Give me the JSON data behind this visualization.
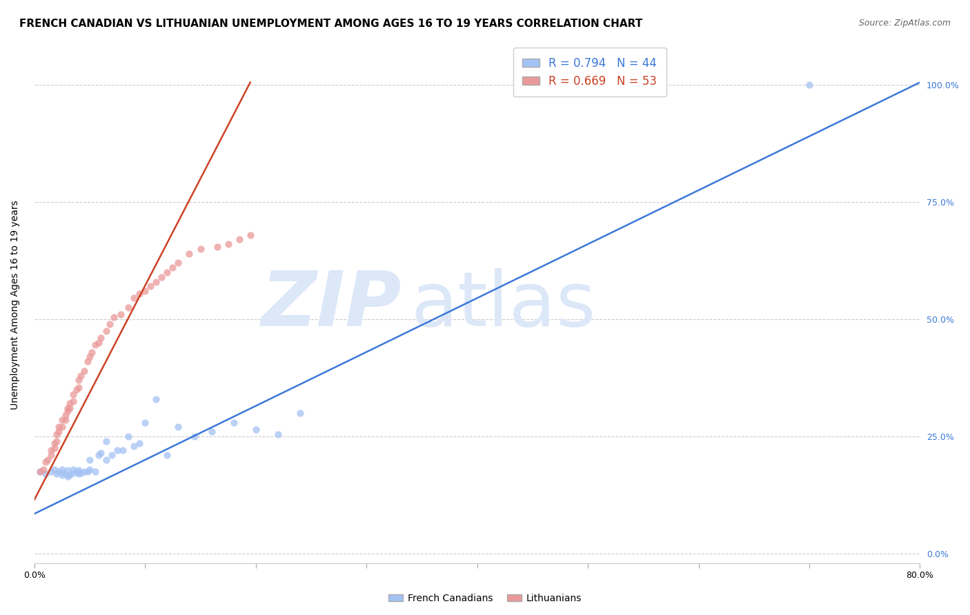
{
  "title": "FRENCH CANADIAN VS LITHUANIAN UNEMPLOYMENT AMONG AGES 16 TO 19 YEARS CORRELATION CHART",
  "source": "Source: ZipAtlas.com",
  "ylabel": "Unemployment Among Ages 16 to 19 years",
  "xlim": [
    0.0,
    0.8
  ],
  "ylim": [
    -0.02,
    1.08
  ],
  "blue_R": 0.794,
  "blue_N": 44,
  "pink_R": 0.669,
  "pink_N": 53,
  "blue_color": "#a4c2f4",
  "pink_color": "#ea9999",
  "blue_line_color": "#3c78d8",
  "pink_line_color": "#cc4125",
  "watermark_zip": "ZIP",
  "watermark_atlas": "atlas",
  "watermark_color": "#dce8f8",
  "legend_label_blue": "French Canadians",
  "legend_label_pink": "Lithuanians",
  "blue_scatter_x": [
    0.005,
    0.01,
    0.015,
    0.018,
    0.02,
    0.022,
    0.025,
    0.025,
    0.027,
    0.03,
    0.03,
    0.032,
    0.035,
    0.035,
    0.038,
    0.04,
    0.04,
    0.042,
    0.045,
    0.048,
    0.05,
    0.05,
    0.055,
    0.058,
    0.06,
    0.065,
    0.065,
    0.07,
    0.075,
    0.08,
    0.085,
    0.09,
    0.095,
    0.1,
    0.11,
    0.12,
    0.13,
    0.145,
    0.16,
    0.18,
    0.2,
    0.22,
    0.24,
    0.7
  ],
  "blue_scatter_y": [
    0.175,
    0.17,
    0.175,
    0.18,
    0.17,
    0.175,
    0.168,
    0.18,
    0.172,
    0.165,
    0.178,
    0.168,
    0.172,
    0.18,
    0.175,
    0.17,
    0.178,
    0.172,
    0.175,
    0.175,
    0.18,
    0.2,
    0.175,
    0.21,
    0.215,
    0.2,
    0.24,
    0.21,
    0.22,
    0.22,
    0.25,
    0.23,
    0.235,
    0.28,
    0.33,
    0.21,
    0.27,
    0.25,
    0.26,
    0.28,
    0.265,
    0.255,
    0.3,
    1.0
  ],
  "pink_scatter_x": [
    0.005,
    0.008,
    0.01,
    0.012,
    0.015,
    0.015,
    0.018,
    0.018,
    0.02,
    0.02,
    0.022,
    0.022,
    0.025,
    0.025,
    0.028,
    0.028,
    0.03,
    0.03,
    0.032,
    0.032,
    0.035,
    0.035,
    0.038,
    0.04,
    0.04,
    0.042,
    0.045,
    0.048,
    0.05,
    0.052,
    0.055,
    0.058,
    0.06,
    0.065,
    0.068,
    0.072,
    0.078,
    0.085,
    0.09,
    0.095,
    0.1,
    0.105,
    0.11,
    0.115,
    0.12,
    0.125,
    0.13,
    0.14,
    0.15,
    0.165,
    0.175,
    0.185,
    0.195
  ],
  "pink_scatter_y": [
    0.175,
    0.18,
    0.195,
    0.2,
    0.21,
    0.22,
    0.225,
    0.235,
    0.24,
    0.255,
    0.26,
    0.27,
    0.27,
    0.285,
    0.285,
    0.295,
    0.305,
    0.31,
    0.31,
    0.32,
    0.325,
    0.34,
    0.35,
    0.355,
    0.37,
    0.38,
    0.39,
    0.41,
    0.42,
    0.43,
    0.445,
    0.45,
    0.46,
    0.475,
    0.49,
    0.505,
    0.51,
    0.525,
    0.545,
    0.555,
    0.56,
    0.57,
    0.58,
    0.59,
    0.6,
    0.61,
    0.62,
    0.64,
    0.65,
    0.655,
    0.66,
    0.67,
    0.68
  ],
  "blue_line_x0": 0.0,
  "blue_line_y0": 0.085,
  "blue_line_x1": 0.8,
  "blue_line_y1": 1.005,
  "pink_line_x0": 0.0,
  "pink_line_y0": 0.115,
  "pink_line_x1": 0.195,
  "pink_line_y1": 1.005,
  "title_fontsize": 11,
  "source_fontsize": 9,
  "axis_label_fontsize": 10,
  "scatter_size": 55
}
